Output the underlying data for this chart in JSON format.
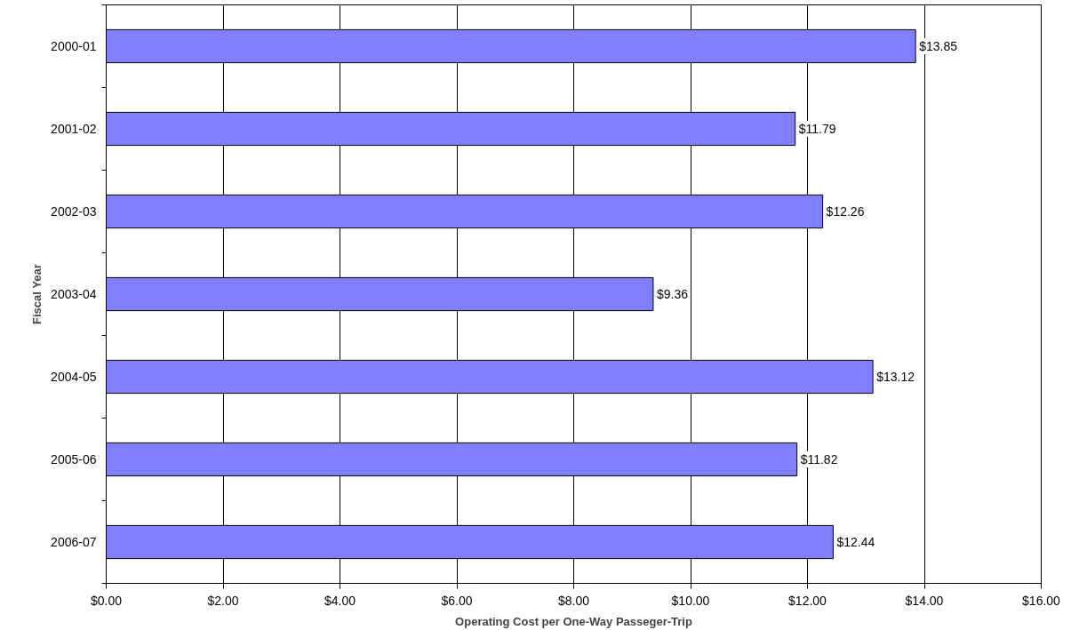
{
  "chart_data": {
    "type": "bar",
    "orientation": "horizontal",
    "xlabel": "Operating Cost per One-Way Passeger-Trip",
    "ylabel": "Fiscal Year",
    "categories": [
      "2000-01",
      "2001-02",
      "2002-03",
      "2003-04",
      "2004-05",
      "2005-06",
      "2006-07"
    ],
    "values": [
      13.85,
      11.79,
      12.26,
      9.36,
      13.12,
      11.82,
      12.44
    ],
    "value_labels": [
      "$13.85",
      "$11.79",
      "$12.26",
      "$9.36",
      "$13.12",
      "$11.82",
      "$12.44"
    ],
    "color": "#8080ff",
    "xlim": [
      0,
      16
    ],
    "xticks": [
      {
        "value": 0,
        "label": "$0.00"
      },
      {
        "value": 2,
        "label": "$2.00"
      },
      {
        "value": 4,
        "label": "$4.00"
      },
      {
        "value": 6,
        "label": "$6.00"
      },
      {
        "value": 8,
        "label": "$8.00"
      },
      {
        "value": 10,
        "label": "$10.00"
      },
      {
        "value": 12,
        "label": "$12.00"
      },
      {
        "value": 14,
        "label": "$14.00"
      },
      {
        "value": 16,
        "label": "$16.00"
      }
    ],
    "grid": "x"
  }
}
